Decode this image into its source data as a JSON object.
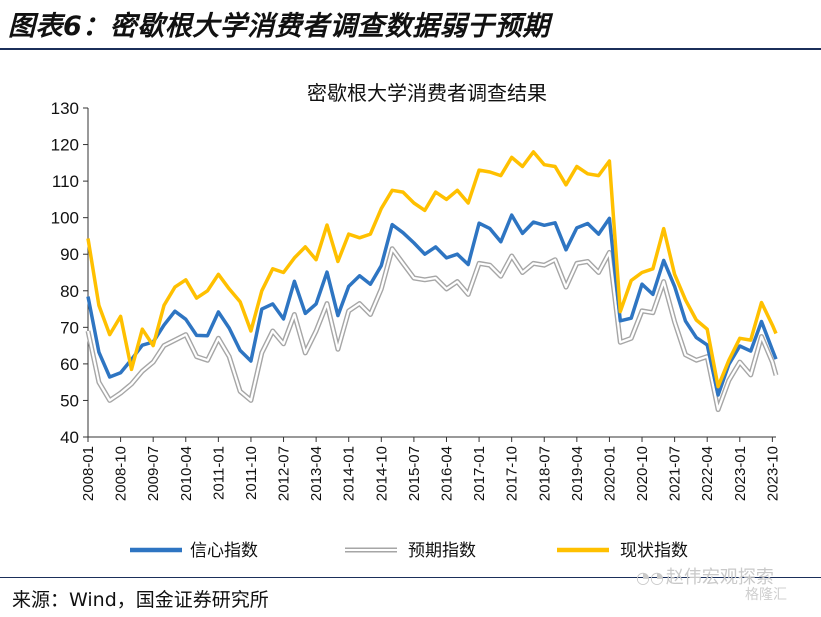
{
  "figure": {
    "title": "图表6：密歇根大学消费者调查数据弱于预期",
    "source": "来源：Wind，国金证券研究所",
    "watermark": "赵伟宏观探索",
    "watermark_sub": "格隆汇",
    "watermark_icon": "wechat-icon"
  },
  "colors": {
    "信心指数": "#2e75c2",
    "预期指数": "#a6a6a6",
    "现状指数": "#ffc000",
    "axis": "#333333",
    "rule": "#1b2f5a"
  },
  "chart_data": {
    "type": "line",
    "title": "密歇根大学消费者调查结果",
    "xlabel": "",
    "ylabel": "",
    "ylim": [
      40,
      130
    ],
    "yticks": [
      40,
      50,
      60,
      70,
      80,
      90,
      100,
      110,
      120,
      130
    ],
    "x_tick_labels": [
      "2008-01",
      "2008-10",
      "2009-07",
      "2010-04",
      "2011-01",
      "2011-10",
      "2012-07",
      "2013-04",
      "2014-01",
      "2014-10",
      "2015-07",
      "2016-04",
      "2017-01",
      "2017-10",
      "2018-07",
      "2019-04",
      "2020-01",
      "2020-10",
      "2021-07",
      "2022-04",
      "2023-01",
      "2023-10"
    ],
    "x": [
      "2008-01",
      "2008-04",
      "2008-07",
      "2008-10",
      "2009-01",
      "2009-04",
      "2009-07",
      "2009-10",
      "2010-01",
      "2010-04",
      "2010-07",
      "2010-10",
      "2011-01",
      "2011-04",
      "2011-07",
      "2011-10",
      "2012-01",
      "2012-04",
      "2012-07",
      "2012-10",
      "2013-01",
      "2013-04",
      "2013-07",
      "2013-10",
      "2014-01",
      "2014-04",
      "2014-07",
      "2014-10",
      "2015-01",
      "2015-04",
      "2015-07",
      "2015-10",
      "2016-01",
      "2016-04",
      "2016-07",
      "2016-10",
      "2017-01",
      "2017-04",
      "2017-07",
      "2017-10",
      "2018-01",
      "2018-04",
      "2018-07",
      "2018-10",
      "2019-01",
      "2019-04",
      "2019-07",
      "2019-10",
      "2020-01",
      "2020-04",
      "2020-07",
      "2020-10",
      "2021-01",
      "2021-04",
      "2021-07",
      "2021-10",
      "2022-01",
      "2022-04",
      "2022-07",
      "2022-10",
      "2023-01",
      "2023-04",
      "2023-07",
      "2023-10",
      "2023-11"
    ],
    "series": [
      {
        "name": "信心指数",
        "values": [
          78.4,
          63.2,
          56.4,
          57.6,
          61.2,
          65.1,
          66.0,
          70.6,
          74.4,
          72.2,
          67.8,
          67.7,
          74.2,
          69.8,
          63.7,
          60.8,
          75.0,
          76.4,
          72.3,
          82.6,
          73.8,
          76.4,
          85.1,
          73.2,
          81.2,
          84.1,
          81.8,
          86.9,
          98.1,
          95.9,
          93.1,
          90.0,
          92.0,
          89.0,
          90.0,
          87.2,
          98.5,
          97.0,
          93.4,
          100.7,
          95.7,
          98.8,
          97.9,
          98.6,
          91.2,
          97.2,
          98.4,
          95.5,
          99.8,
          71.8,
          72.5,
          81.8,
          79.0,
          88.3,
          81.2,
          71.7,
          67.2,
          65.2,
          51.5,
          59.9,
          64.9,
          63.5,
          71.6,
          63.8,
          61.3
        ]
      },
      {
        "name": "预期指数",
        "values": [
          69.0,
          55.0,
          50.0,
          52.0,
          54.5,
          58.0,
          60.5,
          65.0,
          66.5,
          68.0,
          62.0,
          61.0,
          67.0,
          62.0,
          52.5,
          50.0,
          63.0,
          69.0,
          65.5,
          73.5,
          63.0,
          69.0,
          76.5,
          64.0,
          74.5,
          76.5,
          73.5,
          80.5,
          91.5,
          87.5,
          83.5,
          83.0,
          83.5,
          80.5,
          82.5,
          79.0,
          87.5,
          87.0,
          84.0,
          89.5,
          85.0,
          87.5,
          87.0,
          88.5,
          81.0,
          87.5,
          88.0,
          85.0,
          90.5,
          65.9,
          67.0,
          74.5,
          74.0,
          82.5,
          71.5,
          62.5,
          61.0,
          62.0,
          47.5,
          55.5,
          60.5,
          57.0,
          67.5,
          60.5,
          56.9
        ]
      },
      {
        "name": "现状指数",
        "values": [
          94.3,
          76.0,
          68.0,
          73.0,
          58.5,
          69.5,
          65.0,
          76.0,
          81.0,
          83.0,
          78.0,
          80.0,
          84.5,
          80.5,
          77.0,
          69.0,
          80.0,
          86.0,
          85.0,
          89.0,
          92.0,
          88.5,
          98.0,
          88.0,
          95.5,
          94.5,
          95.5,
          102.5,
          107.5,
          107.0,
          104.0,
          102.0,
          107.0,
          105.0,
          107.5,
          104.0,
          113.0,
          112.5,
          111.5,
          116.5,
          114.0,
          118.0,
          114.5,
          114.0,
          109.0,
          114.0,
          112.0,
          111.5,
          115.5,
          74.3,
          82.8,
          85.0,
          86.0,
          97.0,
          84.5,
          77.5,
          72.0,
          69.5,
          53.8,
          61.0,
          67.0,
          66.5,
          76.8,
          70.6,
          68.3
        ]
      }
    ],
    "grid": false,
    "legend_placement": "bottom"
  }
}
